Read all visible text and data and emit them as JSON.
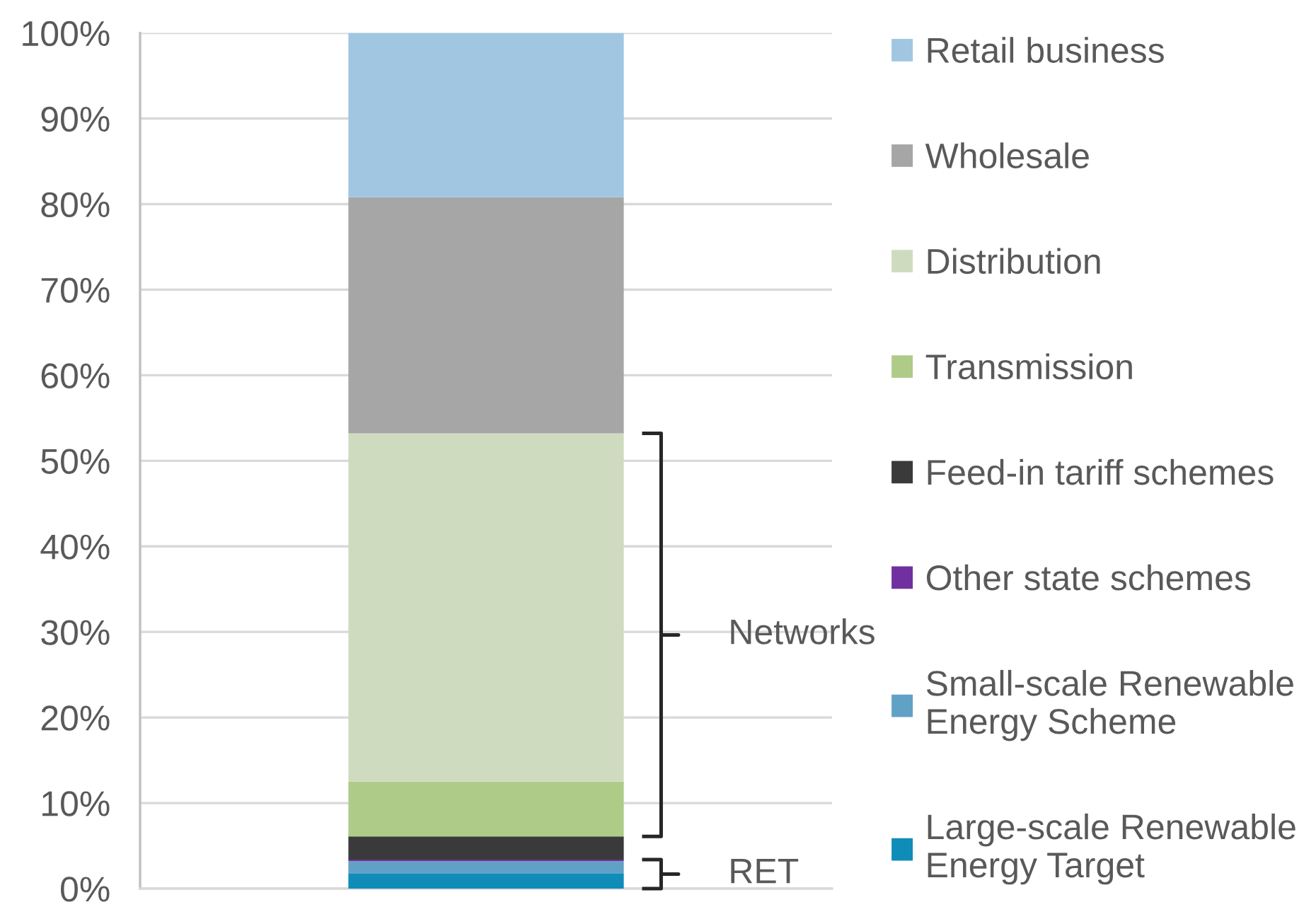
{
  "chart_data": {
    "type": "bar",
    "stacked": true,
    "categories": [
      null
    ],
    "series": [
      {
        "name": "Large-scale Renewable\nEnergy Target",
        "color": "#0f8db8",
        "values": [
          1.8
        ]
      },
      {
        "name": "Small-scale Renewable\nEnergy Scheme",
        "color": "#62a1c6",
        "values": [
          1.4
        ]
      },
      {
        "name": "Other state schemes",
        "color": "#7030a0",
        "values": [
          0.2
        ]
      },
      {
        "name": "Feed-in tariff schemes",
        "color": "#3a3a3a",
        "values": [
          2.7
        ]
      },
      {
        "name": "Transmission",
        "color": "#aecb88",
        "values": [
          6.4
        ]
      },
      {
        "name": "Distribution",
        "color": "#cfdbbf",
        "values": [
          40.7
        ]
      },
      {
        "name": "Wholesale",
        "color": "#a6a6a6",
        "values": [
          27.6
        ]
      },
      {
        "name": "Retail business",
        "color": "#a0c6e2",
        "values": [
          19.2
        ]
      }
    ],
    "ylim": [
      0,
      100
    ],
    "yticks": [
      {
        "value": 0,
        "label": "0%"
      },
      {
        "value": 10,
        "label": "10%"
      },
      {
        "value": 20,
        "label": "20%"
      },
      {
        "value": 30,
        "label": "30%"
      },
      {
        "value": 40,
        "label": "40%"
      },
      {
        "value": 50,
        "label": "50%"
      },
      {
        "value": 60,
        "label": "60%"
      },
      {
        "value": 70,
        "label": "70%"
      },
      {
        "value": 80,
        "label": "80%"
      },
      {
        "value": 90,
        "label": "90%"
      },
      {
        "value": 100,
        "label": "100%"
      }
    ],
    "grid": "y",
    "legend": "right",
    "annotations": [
      "Networks",
      "RET"
    ]
  }
}
